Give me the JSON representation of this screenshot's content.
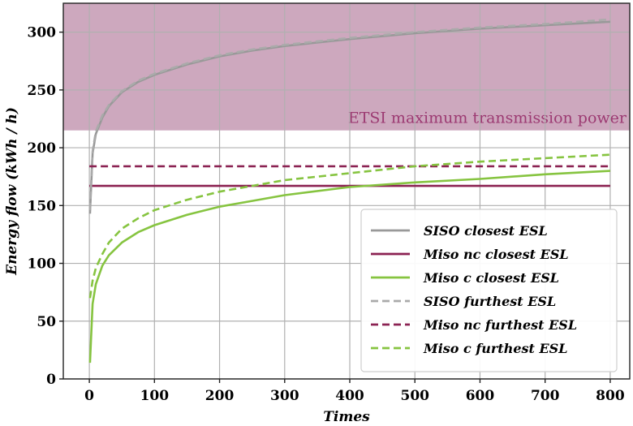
{
  "chart_data": {
    "type": "line",
    "xlabel": "Times",
    "ylabel": "Energy flow (kWh / h)",
    "xlim": [
      -40,
      830
    ],
    "ylim": [
      0,
      325
    ],
    "xticks": [
      0,
      100,
      200,
      300,
      400,
      500,
      600,
      700,
      800
    ],
    "yticks": [
      0,
      50,
      100,
      150,
      200,
      250,
      300
    ],
    "grid": true,
    "legend_position": "lower-right",
    "region": {
      "label": "ETSI maximum transmission power",
      "y_from": 215,
      "y_to": 325,
      "color": "#cda8be"
    },
    "series": [
      {
        "name": "SISO closest ESL",
        "color": "#999999",
        "dash": "solid",
        "x": [
          1,
          5,
          10,
          20,
          30,
          50,
          75,
          100,
          150,
          200,
          250,
          300,
          400,
          500,
          600,
          700,
          800
        ],
        "y": [
          143,
          195,
          212,
          226,
          236,
          248,
          257,
          263,
          272,
          279,
          284,
          288,
          294,
          299,
          303,
          306,
          309
        ]
      },
      {
        "name": "Miso nc closest ESL",
        "color": "#8b2252",
        "dash": "solid",
        "x": [
          0,
          800
        ],
        "y": [
          167,
          167
        ]
      },
      {
        "name": "Miso c closest ESL",
        "color": "#86c440",
        "dash": "solid",
        "x": [
          1,
          5,
          10,
          20,
          30,
          50,
          75,
          100,
          150,
          200,
          250,
          300,
          400,
          500,
          600,
          700,
          800
        ],
        "y": [
          14,
          65,
          82,
          98,
          107,
          118,
          127,
          133,
          142,
          149,
          154,
          159,
          166,
          170,
          173,
          177,
          180
        ]
      },
      {
        "name": "SISO furthest ESL",
        "color": "#aaaaaa",
        "dash": "dashed",
        "x": [
          1,
          5,
          10,
          20,
          30,
          50,
          75,
          100,
          150,
          200,
          250,
          300,
          400,
          500,
          600,
          700,
          800
        ],
        "y": [
          146,
          197,
          214,
          228,
          237,
          249,
          258,
          264,
          273,
          280,
          285,
          289,
          295,
          300,
          304,
          307,
          311
        ]
      },
      {
        "name": "Miso nc furthest ESL",
        "color": "#8b2252",
        "dash": "dashed",
        "x": [
          0,
          800
        ],
        "y": [
          184,
          184
        ]
      },
      {
        "name": "Miso c furthest ESL",
        "color": "#86c440",
        "dash": "dashed",
        "x": [
          1,
          5,
          10,
          20,
          30,
          50,
          75,
          100,
          150,
          200,
          250,
          300,
          400,
          500,
          600,
          700,
          800
        ],
        "y": [
          70,
          85,
          96,
          108,
          118,
          130,
          139,
          146,
          155,
          162,
          167,
          172,
          178,
          184,
          188,
          191,
          194
        ]
      }
    ]
  }
}
